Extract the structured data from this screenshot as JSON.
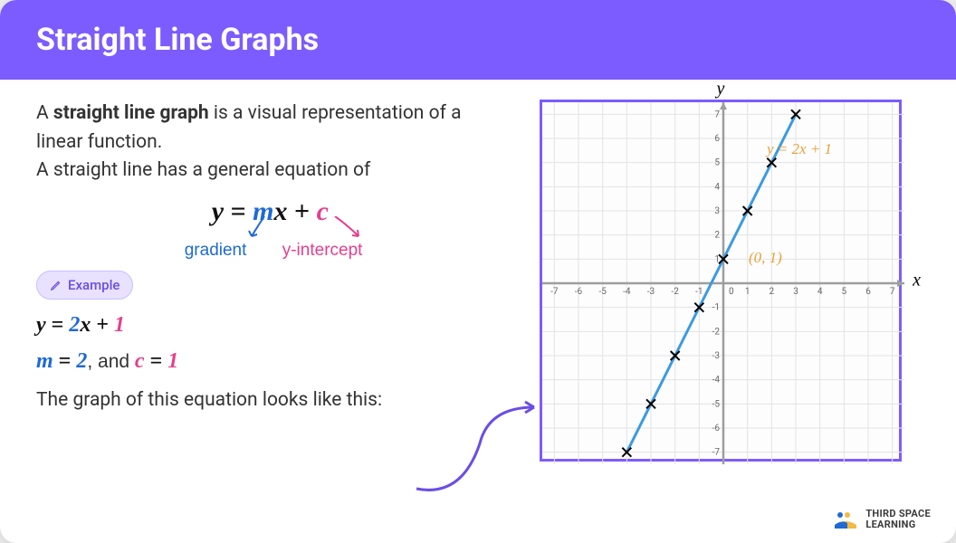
{
  "header": {
    "title": "Straight Line Graphs"
  },
  "intro": {
    "line1_prefix": "A ",
    "line1_bold": "straight line graph",
    "line1_suffix": " is a visual representation of a linear function.",
    "line2": "A straight line has a general equation of"
  },
  "equation": {
    "y": "y",
    "eq": " = ",
    "m": "m",
    "x": "x",
    "plus": " + ",
    "c": "c",
    "gradient_label": "gradient",
    "intercept_label": "y-intercept",
    "colors": {
      "m": "#1e6ad6",
      "c": "#e83e8c",
      "text": "#111111"
    }
  },
  "example": {
    "pill_label": "Example",
    "eq_parts": {
      "y": "y",
      "eq": " = ",
      "coef": "2",
      "x": "x",
      "plus": " + ",
      "c": "1"
    },
    "m_stmt": {
      "m": "m",
      "eq": " = ",
      "val": "2",
      "and": ", and ",
      "c": "c",
      "ceq": " = ",
      "cval": "1"
    },
    "bottom_text": "The graph of this equation looks like this:"
  },
  "chart": {
    "type": "line",
    "xlim": [
      -7.5,
      7.5
    ],
    "ylim": [
      -7.5,
      7.5
    ],
    "xticks": [
      -7,
      -6,
      -5,
      -4,
      -3,
      -2,
      -1,
      1,
      2,
      3,
      4,
      5,
      6,
      7
    ],
    "yticks": [
      -7,
      -6,
      -5,
      -4,
      -3,
      -2,
      -1,
      1,
      2,
      3,
      4,
      5,
      6,
      7
    ],
    "grid_color": "#e3e3e3",
    "axis_color": "#9e9e9e",
    "line_color": "#3b9ae1",
    "marker": "x",
    "marker_color": "#000000",
    "points": [
      [
        -4,
        -7
      ],
      [
        -3,
        -5
      ],
      [
        -2,
        -3
      ],
      [
        -1,
        -1
      ],
      [
        0,
        1
      ],
      [
        1,
        3
      ],
      [
        2,
        5
      ],
      [
        3,
        7
      ]
    ],
    "line_equation_label": "y = 2x + 1",
    "intercept_label": "(0, 1)",
    "label_color": "#e8a23d",
    "y_axis_label": "y",
    "x_axis_label": "x",
    "tick_fontsize": 10,
    "tick_color": "#666666",
    "border_color": "#7c5cff"
  },
  "logo": {
    "text": "THIRD SPACE\nLEARNING"
  },
  "colors": {
    "header_bg": "#7c5cff",
    "header_text": "#ffffff",
    "body_text": "#333333",
    "pill_bg": "#e8e2ff",
    "pill_text": "#6b4de6",
    "connector": "#6b4de6"
  }
}
